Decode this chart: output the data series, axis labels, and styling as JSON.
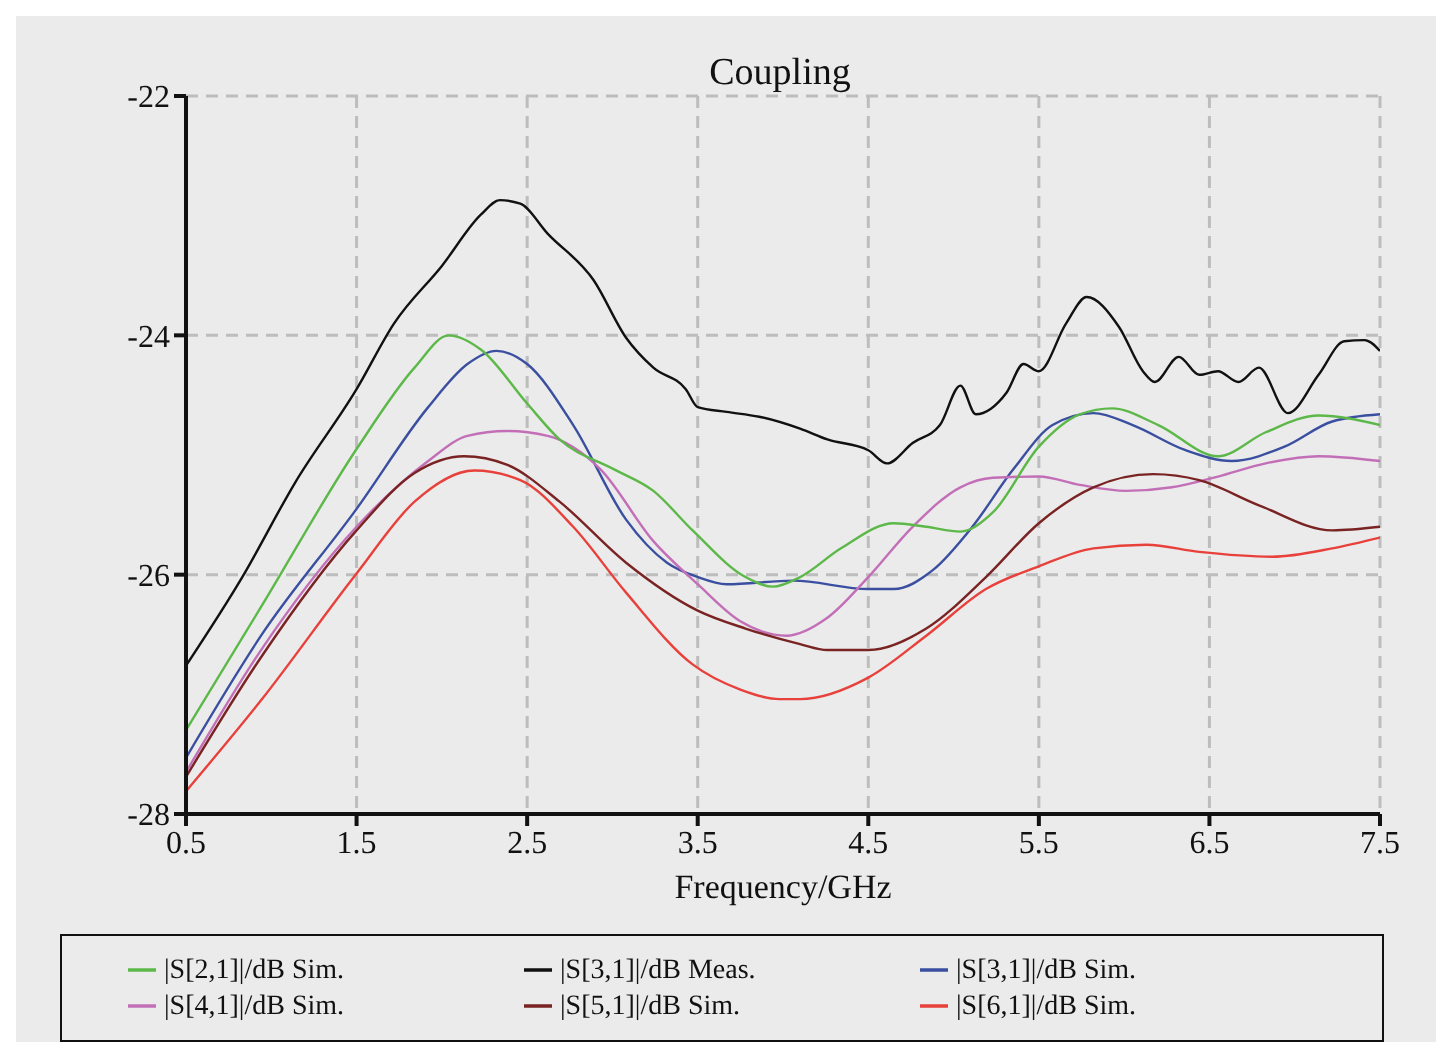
{
  "chart_data": {
    "type": "line",
    "title": "Coupling",
    "xlabel": "Frequency/GHz",
    "xlim": [
      0.5,
      7.5
    ],
    "xticks": [
      0.5,
      1.5,
      2.5,
      3.5,
      4.5,
      5.5,
      6.5,
      7.5
    ],
    "ylim": [
      -28,
      -22
    ],
    "yticks": [
      -28,
      -26,
      -24,
      -22
    ],
    "grid": true,
    "legend": "bottom",
    "marker": "none",
    "line_style": "solid",
    "series": [
      {
        "name": "|S[3,1]|/dB Sim.",
        "color": "#3a4fa0",
        "x": [
          0.5,
          0.94,
          1.5,
          1.92,
          2.15,
          2.32,
          2.5,
          2.77,
          3.08,
          3.32,
          3.5,
          3.67,
          4.06,
          4.5,
          4.65,
          4.88,
          5.11,
          5.35,
          5.58,
          5.82,
          6.05,
          6.36,
          6.63,
          6.94,
          7.22,
          7.5
        ],
        "values": [
          -27.53,
          -26.51,
          -25.45,
          -24.6,
          -24.24,
          -24.13,
          -24.24,
          -24.75,
          -25.54,
          -25.9,
          -26.02,
          -26.08,
          -26.05,
          -26.12,
          -26.12,
          -25.96,
          -25.6,
          -25.12,
          -24.75,
          -24.65,
          -24.75,
          -24.96,
          -25.05,
          -24.93,
          -24.72,
          -24.66
        ]
      },
      {
        "name": "|S[4,1]|/dB Sim.",
        "color": "#c36fb8",
        "x": [
          0.5,
          0.94,
          1.5,
          1.92,
          2.15,
          2.38,
          2.62,
          2.93,
          3.24,
          3.5,
          3.75,
          4.02,
          4.26,
          4.5,
          4.76,
          5.04,
          5.23,
          5.5,
          5.74,
          6.01,
          6.28,
          6.55,
          6.83,
          7.14,
          7.5
        ],
        "values": [
          -27.65,
          -26.63,
          -25.6,
          -25.05,
          -24.84,
          -24.8,
          -24.84,
          -25.12,
          -25.72,
          -26.08,
          -26.39,
          -26.51,
          -26.36,
          -26.02,
          -25.6,
          -25.27,
          -25.19,
          -25.18,
          -25.25,
          -25.3,
          -25.27,
          -25.18,
          -25.07,
          -25.01,
          -25.05
        ]
      },
      {
        "name": "|S[5,1]|/dB Sim.",
        "color": "#7a2323",
        "x": [
          0.5,
          0.94,
          1.5,
          1.84,
          2.13,
          2.38,
          2.69,
          3.08,
          3.5,
          3.78,
          4.1,
          4.26,
          4.5,
          4.84,
          5.19,
          5.5,
          5.82,
          6.17,
          6.44,
          6.79,
          7.22,
          7.5
        ],
        "values": [
          -27.69,
          -26.69,
          -25.63,
          -25.15,
          -25.01,
          -25.08,
          -25.39,
          -25.9,
          -26.3,
          -26.45,
          -26.58,
          -26.63,
          -26.63,
          -26.45,
          -26.02,
          -25.57,
          -25.27,
          -25.16,
          -25.21,
          -25.42,
          -25.63,
          -25.6
        ]
      },
      {
        "name": "|S[6,1]|/dB Sim.",
        "color": "#e8413c",
        "x": [
          0.5,
          0.94,
          1.5,
          1.84,
          2.19,
          2.46,
          2.77,
          3.08,
          3.47,
          3.75,
          3.98,
          4.1,
          4.5,
          4.84,
          5.19,
          5.5,
          5.82,
          6.13,
          6.44,
          6.87,
          7.22,
          7.5
        ],
        "values": [
          -27.81,
          -27.05,
          -25.99,
          -25.39,
          -25.13,
          -25.21,
          -25.6,
          -26.15,
          -26.75,
          -26.96,
          -27.04,
          -27.04,
          -26.86,
          -26.51,
          -26.12,
          -25.93,
          -25.78,
          -25.75,
          -25.81,
          -25.85,
          -25.78,
          -25.69
        ]
      },
      {
        "name": "|S[2,1]|/dB Sim.",
        "color": "#5cb848",
        "x": [
          0.5,
          0.94,
          1.5,
          1.84,
          2.04,
          2.23,
          2.5,
          2.69,
          3.01,
          3.24,
          3.47,
          3.78,
          3.94,
          4.1,
          4.34,
          4.65,
          4.84,
          5.04,
          5.23,
          5.5,
          5.74,
          5.93,
          6.2,
          6.55,
          6.83,
          7.14,
          7.5
        ],
        "values": [
          -27.3,
          -26.27,
          -24.95,
          -24.27,
          -24.0,
          -24.12,
          -24.57,
          -24.87,
          -25.12,
          -25.3,
          -25.63,
          -26.02,
          -26.1,
          -26.02,
          -25.78,
          -25.57,
          -25.6,
          -25.64,
          -25.48,
          -24.93,
          -24.66,
          -24.61,
          -24.75,
          -25.01,
          -24.81,
          -24.67,
          -24.75
        ]
      },
      {
        "name": "|S[3,1]|/dB Meas.",
        "color": "#111111",
        "x": [
          0.5,
          0.83,
          1.14,
          1.5,
          1.72,
          2.0,
          2.23,
          2.34,
          2.46,
          2.62,
          2.89,
          3.08,
          3.24,
          3.43,
          3.5,
          3.67,
          3.86,
          4.1,
          4.26,
          4.5,
          4.61,
          4.76,
          4.92,
          5.04,
          5.13,
          5.31,
          5.41,
          5.5,
          5.66,
          5.78,
          5.97,
          6.11,
          6.18,
          6.32,
          6.44,
          6.55,
          6.67,
          6.79,
          6.96,
          7.14,
          7.29,
          7.41,
          7.5
        ],
        "values": [
          -26.76,
          -26.02,
          -25.23,
          -24.45,
          -23.9,
          -23.42,
          -22.99,
          -22.87,
          -22.9,
          -23.15,
          -23.54,
          -24.02,
          -24.27,
          -24.45,
          -24.6,
          -24.64,
          -24.68,
          -24.78,
          -24.87,
          -24.96,
          -25.07,
          -24.9,
          -24.75,
          -24.42,
          -24.66,
          -24.48,
          -24.24,
          -24.3,
          -23.9,
          -23.68,
          -23.93,
          -24.3,
          -24.39,
          -24.18,
          -24.33,
          -24.3,
          -24.39,
          -24.27,
          -24.65,
          -24.33,
          -24.05,
          -24.04,
          -24.13
        ]
      }
    ]
  }
}
